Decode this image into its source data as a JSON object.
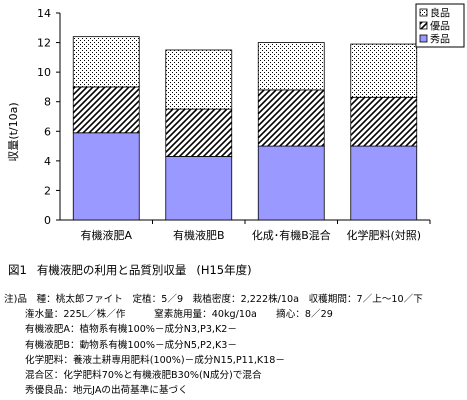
{
  "chart_data": {
    "type": "bar",
    "stacked": true,
    "categories": [
      "有機液肥A",
      "有機液肥B",
      "化成･有機B混合",
      "化学肥料(対照)"
    ],
    "series": [
      {
        "name": "秀品",
        "values": [
          5.9,
          4.3,
          5.0,
          5.0
        ],
        "fill": "#9999ff",
        "pattern": "solid"
      },
      {
        "name": "優品",
        "values": [
          3.1,
          3.2,
          3.8,
          3.3
        ],
        "fill": "#ffffff",
        "pattern": "diagonal"
      },
      {
        "name": "良品",
        "values": [
          3.4,
          4.0,
          3.2,
          3.6
        ],
        "fill": "#ffffff",
        "pattern": "dots"
      }
    ],
    "ylabel": "収量(t/10a)",
    "ylim": [
      0,
      14
    ],
    "yticks": [
      "0",
      "2",
      "4",
      "6",
      "8",
      "10",
      "12",
      "14"
    ],
    "grid": false,
    "legend_position": "top-right"
  },
  "caption": {
    "number": "図1",
    "title": "有機液肥の利用と品質別収量",
    "period": "(H15年度)"
  },
  "notes": [
    "注)品　種：桃太郎ファイト　定植：5／9　栽植密度：2,222株/10a　収穫期間：7／上～10／下",
    "潅水量：225L／株／作　　　窒素施用量：40kg/10a　　摘心：8／29",
    "有機液肥A：植物系有機100%－成分N3,P3,K2－",
    "有機液肥B：動物系有機100%－成分N5,P2,K3－",
    "化学肥料：養液土耕専用肥料(100%)－成分N15,P11,K18－",
    "混合区：化学肥料70%と有機液肥B30%(N成分)で混合",
    "秀優良品：地元JAの出荷基準に基づく"
  ]
}
